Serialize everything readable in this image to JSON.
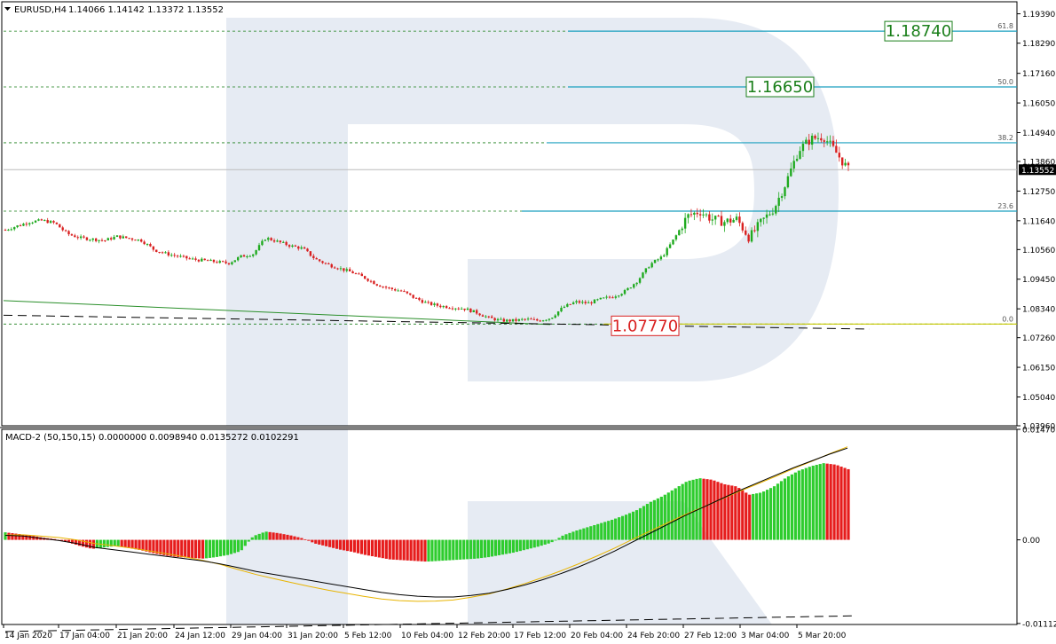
{
  "chart_data": [
    {
      "type": "candlestick",
      "pane": "price",
      "header": {
        "symbol_label": "EURUSD,H4",
        "ohlc": "1.14066 1.14142 1.13372 1.13552"
      },
      "ylim": [
        1.0396,
        1.1984
      ],
      "price_ticks": [
        "1.19390",
        "1.18290",
        "1.17160",
        "1.16050",
        "1.14940",
        "1.13860",
        "1.12750",
        "1.11640",
        "1.10560",
        "1.09450",
        "1.08340",
        "1.07260",
        "1.06150",
        "1.05040",
        "1.03960"
      ],
      "current_price": "1.13552",
      "close_path": [
        1.113,
        1.1145,
        1.116,
        1.1165,
        1.1155,
        1.1115,
        1.11,
        1.1095,
        1.109,
        1.1105,
        1.1098,
        1.109,
        1.1055,
        1.104,
        1.103,
        1.102,
        1.1015,
        1.101,
        1.1005,
        1.103,
        1.104,
        1.11,
        1.1085,
        1.107,
        1.106,
        1.102,
        1.1,
        1.0985,
        1.097,
        1.095,
        1.0925,
        1.091,
        1.09,
        1.0875,
        1.0855,
        1.0845,
        1.084,
        1.0835,
        1.082,
        1.08,
        1.079,
        1.079,
        1.0795,
        1.079,
        1.08,
        1.084,
        1.086,
        1.0855,
        1.087,
        1.088,
        1.09,
        1.094,
        1.1,
        1.103,
        1.11,
        1.118,
        1.12,
        1.117,
        1.116,
        1.117,
        1.11,
        1.116,
        1.121,
        1.131,
        1.143,
        1.147,
        1.148,
        1.142,
        1.1355
      ],
      "fibonacci": [
        {
          "level": "61.8",
          "price": 1.1874,
          "box_label": "1.18740",
          "box_color": "#1a7f1a"
        },
        {
          "level": "50.0",
          "price": 1.1665,
          "box_label": "1.16650",
          "box_color": "#1a7f1a"
        },
        {
          "level": "38.2",
          "price": 1.1456,
          "box_label": "",
          "box_color": ""
        },
        {
          "level": "23.6",
          "price": 1.12,
          "box_label": "",
          "box_color": ""
        },
        {
          "level": "0.0",
          "price": 1.0777,
          "box_label": "1.07770",
          "box_color": "#d92020"
        }
      ],
      "colors": {
        "bull": "#1faa1f",
        "bear": "#d92020",
        "fib": "#1a9fbf",
        "dotted": "#1a7f1a",
        "zero_line": "#c8c800",
        "trend": "#2a8f2a"
      }
    },
    {
      "type": "histogram",
      "pane": "macd",
      "header": "MACD-2 (50,150,15) 0.0000000 0.0098940 0.0135272 0.0102291",
      "ylim": [
        -0.01126,
        0.0147011
      ],
      "ticks": [
        "0.0147011",
        "0.00",
        "-0.011126"
      ],
      "histogram": [
        0.001,
        0.0008,
        0.0006,
        0.0003,
        0.0001,
        -0.0003,
        -0.0008,
        -0.0012,
        -0.001,
        -0.0008,
        -0.0011,
        -0.0014,
        -0.0018,
        -0.0021,
        -0.0023,
        -0.0024,
        -0.0025,
        -0.0023,
        -0.002,
        -0.0015,
        0.0005,
        0.0011,
        0.0009,
        0.0006,
        0.0002,
        -0.0005,
        -0.0009,
        -0.0013,
        -0.0016,
        -0.002,
        -0.0023,
        -0.0026,
        -0.0027,
        -0.0028,
        -0.0029,
        -0.0028,
        -0.0027,
        -0.0026,
        -0.0025,
        -0.0023,
        -0.002,
        -0.0017,
        -0.0013,
        -0.0009,
        -0.0004,
        0.0006,
        0.0012,
        0.0017,
        0.0022,
        0.0027,
        0.0033,
        0.004,
        0.005,
        0.0058,
        0.0068,
        0.0078,
        0.0082,
        0.008,
        0.0074,
        0.0071,
        0.006,
        0.0063,
        0.0071,
        0.0083,
        0.0092,
        0.0098,
        0.0102,
        0.01,
        0.0094
      ],
      "signal_line": [
        0.0006,
        0.0005,
        0.0002,
        -0.0001,
        -0.0005,
        -0.001,
        -0.0013,
        -0.0016,
        -0.0019,
        -0.0022,
        -0.0025,
        -0.0028,
        -0.0032,
        -0.0037,
        -0.0042,
        -0.0046,
        -0.005,
        -0.0054,
        -0.0058,
        -0.0062,
        -0.0066,
        -0.007,
        -0.0073,
        -0.0075,
        -0.0076,
        -0.0076,
        -0.0074,
        -0.0071,
        -0.0066,
        -0.006,
        -0.0053,
        -0.0045,
        -0.0036,
        -0.0026,
        -0.0015,
        -0.0003,
        0.0009,
        0.0021,
        0.0033,
        0.0044,
        0.0055,
        0.0066,
        0.0076,
        0.0086,
        0.0096,
        0.0105,
        0.0114,
        0.0122
      ],
      "zero_dash": -0.0101,
      "colors": {
        "up": "#2ecc2e",
        "down": "#e61c1c",
        "signal": "#e8b400",
        "line": "#000000"
      }
    }
  ],
  "x_axis": {
    "labels": [
      "14 Jan 2020",
      "17 Jan 04:00",
      "21 Jan 20:00",
      "24 Jan 12:00",
      "29 Jan 04:00",
      "31 Jan 20:00",
      "5 Feb 12:00",
      "10 Feb 04:00",
      "12 Feb 20:00",
      "17 Feb 12:00",
      "20 Feb 04:00",
      "24 Feb 20:00",
      "27 Feb 12:00",
      "3 Mar 04:00",
      "5 Mar 20:00"
    ]
  },
  "watermark_color": "#dde4ef"
}
